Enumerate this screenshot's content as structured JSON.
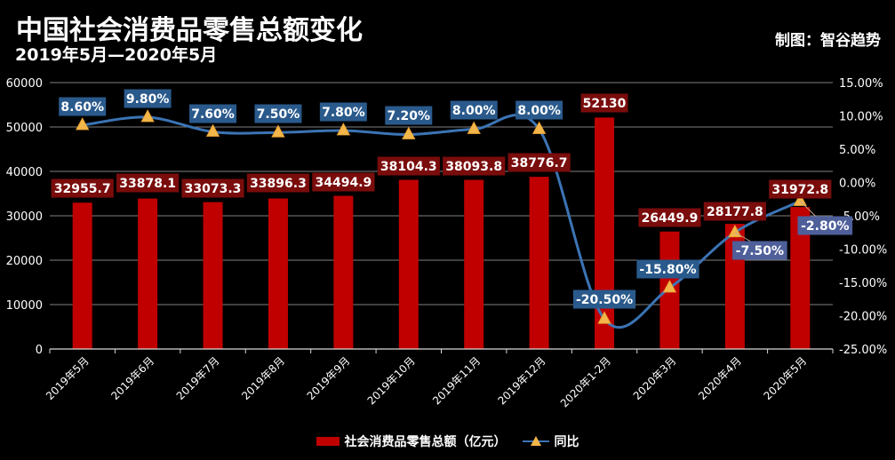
{
  "header": {
    "title": "中国社会消费品零售总额变化",
    "subtitle": "2019年5月—2020年5月",
    "credit": "制图：智谷趋势"
  },
  "colors": {
    "background": "#000000",
    "bar": "#c00000",
    "bar_label_bg": "#7a0c0c",
    "line": "#3b74b4",
    "line_label_bg": "#2a5a8c",
    "line_label_bg_alt": "#4e5f9a",
    "marker": "#f3b64a",
    "grid": "#7f7f7f",
    "text": "#ffffff"
  },
  "legend": {
    "bar_label": "社会消费品零售总额（亿元）",
    "line_label": "同比"
  },
  "chart_data": {
    "type": "bar+line",
    "title": "中国社会消费品零售总额变化",
    "subtitle": "2019年5月—2020年5月",
    "categories": [
      "2019年5月",
      "2019年6月",
      "2019年7月",
      "2019年8月",
      "2019年9月",
      "2019年10月",
      "2019年11月",
      "2019年12月",
      "2020年1-2月",
      "2020年3月",
      "2020年4月",
      "2020年5月"
    ],
    "series": [
      {
        "name": "社会消费品零售总额（亿元）",
        "type": "bar",
        "axis": "left",
        "values": [
          32955.7,
          33878.1,
          33073.3,
          33896.3,
          34494.9,
          38104.3,
          38093.8,
          38776.7,
          52130,
          26449.9,
          28177.8,
          31972.8
        ],
        "labels": [
          "32955.7",
          "33878.1",
          "33073.3",
          "33896.3",
          "34494.9",
          "38104.3",
          "38093.8",
          "38776.7",
          "52130",
          "26449.9",
          "28177.8",
          "31972.8"
        ]
      },
      {
        "name": "同比",
        "type": "line",
        "axis": "right",
        "values": [
          8.6,
          9.8,
          7.6,
          7.5,
          7.8,
          7.2,
          8.0,
          8.0,
          -20.5,
          -15.8,
          -7.5,
          -2.8
        ],
        "labels": [
          "8.60%",
          "9.80%",
          "7.60%",
          "7.50%",
          "7.80%",
          "7.20%",
          "8.00%",
          "8.00%",
          "-20.50%",
          "-15.80%",
          "-7.50%",
          "-2.80%"
        ]
      }
    ],
    "left_axis": {
      "ylim": [
        0,
        60000
      ],
      "ticks": [
        "0",
        "10000",
        "20000",
        "30000",
        "40000",
        "50000",
        "60000"
      ]
    },
    "right_axis": {
      "ylim": [
        -25,
        15
      ],
      "ticks": [
        "-25.00%",
        "-20.00%",
        "-15.00%",
        "-10.00%",
        "-5.00%",
        "0.00%",
        "5.00%",
        "10.00%",
        "15.00%"
      ]
    },
    "grid": true,
    "legend_position": "bottom"
  }
}
